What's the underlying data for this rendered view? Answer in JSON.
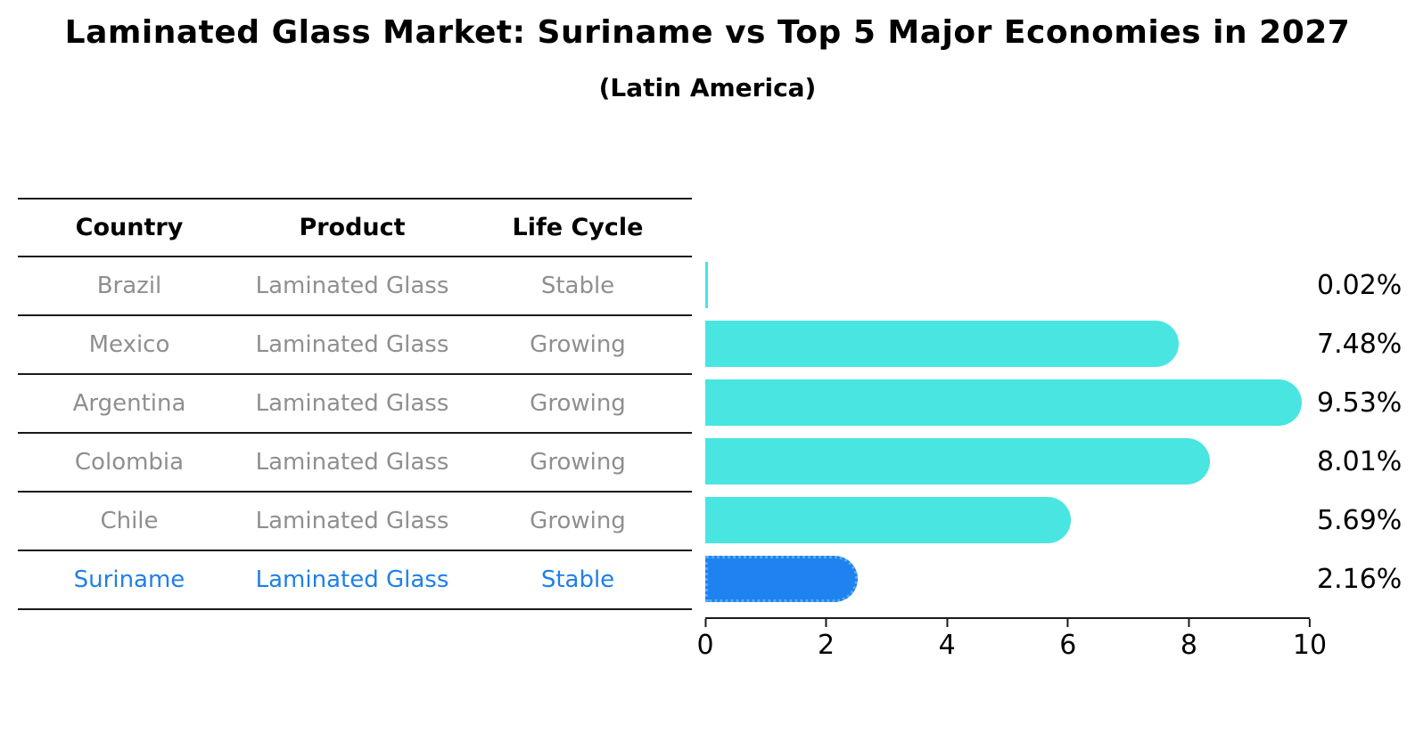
{
  "title": "Laminated Glass Market: Suriname vs Top 5 Major Economies in 2027",
  "subtitle": "(Latin America)",
  "table": {
    "columns": [
      "Country",
      "Product",
      "Life Cycle"
    ],
    "rows": [
      {
        "country": "Brazil",
        "product": "Laminated Glass",
        "life_cycle": "Stable",
        "highlighted": false
      },
      {
        "country": "Mexico",
        "product": "Laminated Glass",
        "life_cycle": "Growing",
        "highlighted": false
      },
      {
        "country": "Argentina",
        "product": "Laminated Glass",
        "life_cycle": "Growing",
        "highlighted": false
      },
      {
        "country": "Colombia",
        "product": "Laminated Glass",
        "life_cycle": "Growing",
        "highlighted": false
      },
      {
        "country": "Chile",
        "product": "Laminated Glass",
        "life_cycle": "Growing",
        "highlighted": false
      },
      {
        "country": "Suriname",
        "product": "Laminated Glass",
        "life_cycle": "Stable",
        "highlighted": true
      }
    ]
  },
  "chart_data": {
    "type": "bar",
    "orientation": "horizontal",
    "title": "Laminated Glass Market: Suriname vs Top 5 Major Economies in 2027",
    "subtitle": "(Latin America)",
    "categories": [
      "Brazil",
      "Mexico",
      "Argentina",
      "Colombia",
      "Chile",
      "Suriname"
    ],
    "values": [
      0.02,
      7.48,
      9.53,
      8.01,
      5.69,
      2.16
    ],
    "value_labels": [
      "0.02%",
      "7.48%",
      "9.53%",
      "8.01%",
      "5.69%",
      "2.16%"
    ],
    "xlabel": "",
    "ylabel": "",
    "xlim": [
      0,
      10
    ],
    "x_ticks": [
      "0",
      "2",
      "4",
      "6",
      "8",
      "10"
    ],
    "grid": false,
    "legend": false,
    "highlight_index": 5,
    "colors": {
      "bar": "#48e5e1",
      "highlight_bar": "#1e82f0",
      "highlight_border": "#56aaf0",
      "highlight_text": "#1f7fe8",
      "row_text": "#8f8f8f",
      "header_text": "#000000",
      "axis": "#1a1a1a",
      "background": "#ffffff"
    }
  }
}
